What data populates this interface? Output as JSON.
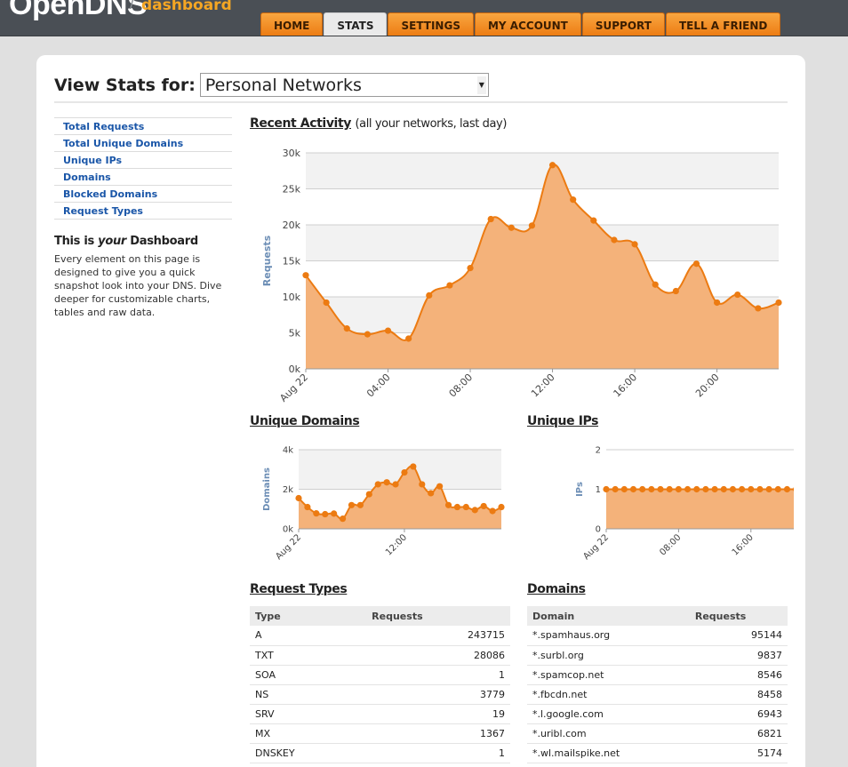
{
  "app": {
    "logo_text": "OpenDNS",
    "logo_slash": "/",
    "logo_sub": "dashboard"
  },
  "nav": {
    "tabs": [
      {
        "label": "HOME",
        "active": false
      },
      {
        "label": "STATS",
        "active": true
      },
      {
        "label": "SETTINGS",
        "active": false
      },
      {
        "label": "MY ACCOUNT",
        "active": false
      },
      {
        "label": "SUPPORT",
        "active": false
      },
      {
        "label": "TELL A FRIEND",
        "active": false
      }
    ]
  },
  "viewstats": {
    "label": "View Stats for:",
    "selected": "Personal Networks"
  },
  "sidebar": {
    "items": [
      {
        "label": "Total Requests"
      },
      {
        "label": "Total Unique Domains"
      },
      {
        "label": "Unique IPs"
      },
      {
        "label": "Domains"
      },
      {
        "label": "Blocked Domains"
      },
      {
        "label": "Request Types"
      }
    ],
    "dash_prefix": "This is",
    "dash_em": "your",
    "dash_suffix": "Dashboard",
    "dash_desc": "Every element on this page is designed to give you a quick snapshot look into your DNS. Dive deeper for customizable charts, tables and raw data."
  },
  "recent_activity": {
    "title": "Recent Activity",
    "subtitle": "(all your networks, last day)"
  },
  "unique_domains": {
    "title": "Unique Domains"
  },
  "unique_ips": {
    "title": "Unique IPs"
  },
  "request_types": {
    "title": "Request Types",
    "col_type": "Type",
    "col_requests": "Requests",
    "rows": [
      {
        "type": "A",
        "requests": "243715"
      },
      {
        "type": "TXT",
        "requests": "28086"
      },
      {
        "type": "SOA",
        "requests": "1"
      },
      {
        "type": "NS",
        "requests": "3779"
      },
      {
        "type": "SRV",
        "requests": "19"
      },
      {
        "type": "MX",
        "requests": "1367"
      },
      {
        "type": "DNSKEY",
        "requests": "1"
      }
    ]
  },
  "domains": {
    "title": "Domains",
    "col_domain": "Domain",
    "col_requests": "Requests",
    "rows": [
      {
        "domain": "*.spamhaus.org",
        "requests": "95144"
      },
      {
        "domain": "*.surbl.org",
        "requests": "9837"
      },
      {
        "domain": "*.spamcop.net",
        "requests": "8546"
      },
      {
        "domain": "*.fbcdn.net",
        "requests": "8458"
      },
      {
        "domain": "*.l.google.com",
        "requests": "6943"
      },
      {
        "domain": "*.uribl.com",
        "requests": "6821"
      },
      {
        "domain": "*.wl.mailspike.net",
        "requests": "5174"
      }
    ]
  },
  "colors": {
    "accent": "#ec7b12",
    "area_fill": "#f4b27a",
    "link": "#1a56a8"
  },
  "chart_data": [
    {
      "id": "recent",
      "type": "area",
      "ylabel": "Requests",
      "yticks": [
        "0k",
        "5k",
        "10k",
        "15k",
        "20k",
        "25k",
        "30k"
      ],
      "ylim": [
        0,
        30000
      ],
      "xticks": [
        {
          "label": "Aug 22",
          "hour": 0
        },
        {
          "label": "04:00",
          "hour": 4
        },
        {
          "label": "08:00",
          "hour": 8
        },
        {
          "label": "12:00",
          "hour": 12
        },
        {
          "label": "16:00",
          "hour": 16
        },
        {
          "label": "20:00",
          "hour": 20
        }
      ],
      "xlim": [
        0,
        23
      ],
      "x": [
        0,
        1,
        2,
        3,
        4,
        5,
        6,
        7,
        8,
        9,
        10,
        11,
        12,
        13,
        14,
        15,
        16,
        17,
        18,
        19,
        20,
        21,
        22,
        23
      ],
      "values": [
        13000,
        9200,
        5600,
        4800,
        5300,
        4200,
        10200,
        11600,
        14000,
        20800,
        19600,
        19900,
        28300,
        23500,
        20600,
        17900,
        17300,
        11700,
        10800,
        14600,
        9200,
        10300,
        8400,
        9200
      ],
      "bands": true
    },
    {
      "id": "domains",
      "type": "area",
      "ylabel": "Domains",
      "yticks": [
        "0k",
        "2k",
        "4k"
      ],
      "ylim": [
        0,
        4000
      ],
      "xticks": [
        {
          "label": "Aug 22",
          "hour": 0
        },
        {
          "label": "12:00",
          "hour": 12
        }
      ],
      "xlim": [
        0,
        23
      ],
      "x": [
        0,
        1,
        2,
        3,
        4,
        5,
        6,
        7,
        8,
        9,
        10,
        11,
        12,
        13,
        14,
        15,
        16,
        17,
        18,
        19,
        20,
        21,
        22,
        23
      ],
      "values": [
        1550,
        1100,
        780,
        740,
        770,
        510,
        1200,
        1200,
        1750,
        2250,
        2350,
        2250,
        2850,
        3150,
        2250,
        1800,
        2150,
        1200,
        1100,
        1100,
        950,
        1150,
        900,
        1100
      ],
      "bands": true
    },
    {
      "id": "ips",
      "type": "area",
      "ylabel": "IPs",
      "yticks": [
        "0",
        "1",
        "2"
      ],
      "ylim": [
        0,
        2
      ],
      "xticks": [
        {
          "label": "Aug 22",
          "hour": 0
        },
        {
          "label": "08:00",
          "hour": 8
        },
        {
          "label": "16:00",
          "hour": 16
        }
      ],
      "xlim": [
        0,
        23
      ],
      "x": [
        0,
        1,
        2,
        3,
        4,
        5,
        6,
        7,
        8,
        9,
        10,
        11,
        12,
        13,
        14,
        15,
        16,
        17,
        18,
        19,
        20,
        21,
        22,
        23
      ],
      "values": [
        1,
        1,
        1,
        1,
        1,
        1,
        1,
        1,
        1,
        1,
        1,
        1,
        1,
        1,
        1,
        1,
        1,
        1,
        1,
        1,
        1,
        1,
        1,
        1
      ],
      "bands": false
    }
  ]
}
